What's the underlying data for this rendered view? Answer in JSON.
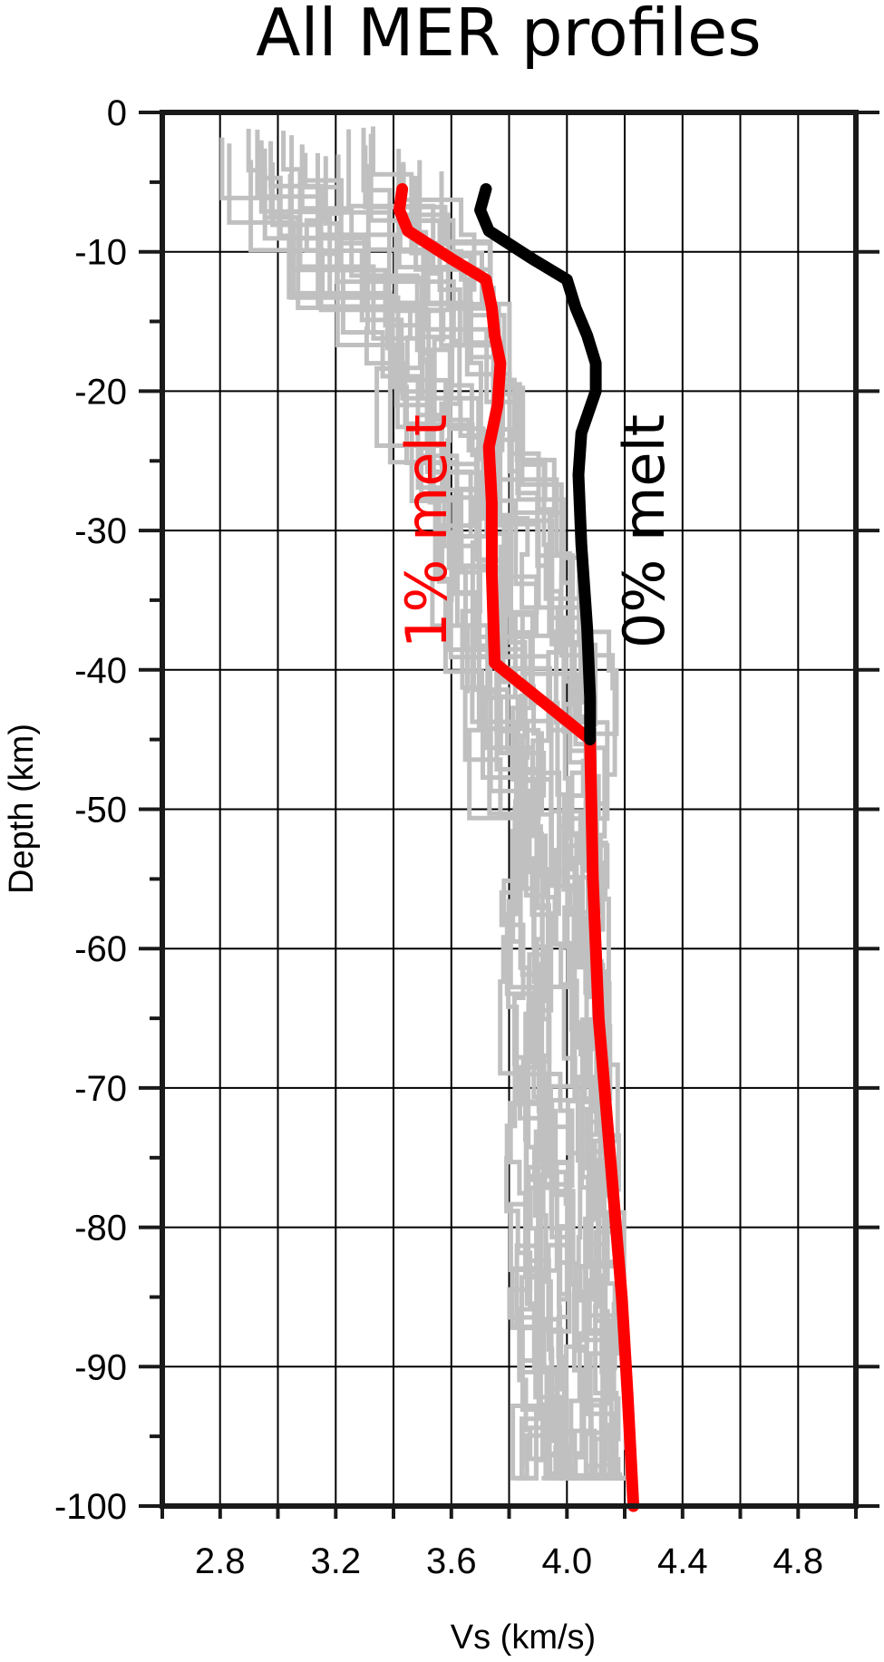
{
  "chart_data": {
    "type": "line",
    "title": "All MER profiles",
    "xlabel": "Vs (km/s)",
    "ylabel": "Depth (km)",
    "xlim": [
      2.6,
      5.0
    ],
    "ylim": [
      -100,
      0
    ],
    "x_ticks": [
      2.8,
      3.2,
      3.6,
      4.0,
      4.4,
      4.8
    ],
    "x_tick_labels": [
      "2.8",
      "3.2",
      "3.6",
      "4.0",
      "4.4",
      "4.8"
    ],
    "y_ticks": [
      0,
      -10,
      -20,
      -30,
      -40,
      -50,
      -60,
      -70,
      -80,
      -90,
      -100
    ],
    "y_tick_labels": [
      "0",
      "-10",
      "-20",
      "-30",
      "-40",
      "-50",
      "-60",
      "-70",
      "-80",
      "-90",
      "-100"
    ],
    "grid": true,
    "series": [
      {
        "name": "1% melt",
        "color": "#ff0000",
        "points": [
          [
            3.43,
            -5.5
          ],
          [
            3.42,
            -7
          ],
          [
            3.45,
            -8.5
          ],
          [
            3.6,
            -10.5
          ],
          [
            3.72,
            -12
          ],
          [
            3.74,
            -14
          ],
          [
            3.75,
            -16
          ],
          [
            3.77,
            -18
          ],
          [
            3.76,
            -21
          ],
          [
            3.73,
            -24
          ],
          [
            3.74,
            -28
          ],
          [
            3.74,
            -33
          ],
          [
            3.75,
            -39.5
          ],
          [
            4.08,
            -45
          ],
          [
            4.09,
            -55
          ],
          [
            4.11,
            -65
          ],
          [
            4.15,
            -75
          ],
          [
            4.19,
            -85
          ],
          [
            4.21,
            -92
          ],
          [
            4.23,
            -100
          ]
        ]
      },
      {
        "name": "0% melt",
        "color": "#000000",
        "points": [
          [
            3.72,
            -5.5
          ],
          [
            3.7,
            -7
          ],
          [
            3.73,
            -8.5
          ],
          [
            3.88,
            -10.5
          ],
          [
            4.0,
            -12
          ],
          [
            4.03,
            -14
          ],
          [
            4.07,
            -16
          ],
          [
            4.1,
            -18
          ],
          [
            4.1,
            -20
          ],
          [
            4.05,
            -23
          ],
          [
            4.04,
            -26
          ],
          [
            4.05,
            -31
          ],
          [
            4.07,
            -37
          ],
          [
            4.08,
            -42
          ],
          [
            4.08,
            -45
          ]
        ]
      }
    ],
    "colors": {
      "background": "#ffffff",
      "profiles": "#c0c0c0",
      "axes": "#1a1a1a",
      "one_percent_melt": "#ff0000",
      "zero_percent_melt": "#000000"
    }
  }
}
